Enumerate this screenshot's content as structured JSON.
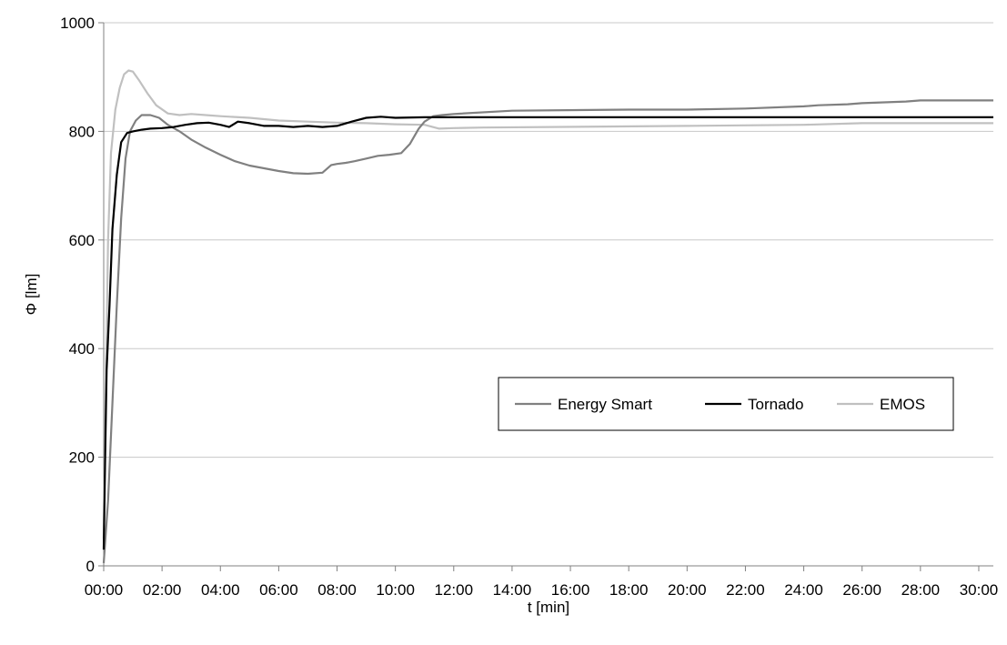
{
  "chart_data": {
    "type": "line",
    "title": "",
    "xlabel": "t [min]",
    "ylabel": "Φ [lm]",
    "x_unit": "minutes",
    "xlim": [
      0,
      30.5
    ],
    "ylim": [
      0,
      1000
    ],
    "x_ticks": [
      0,
      2,
      4,
      6,
      8,
      10,
      12,
      14,
      16,
      18,
      20,
      22,
      24,
      26,
      28,
      30
    ],
    "x_tick_labels": [
      "00:00",
      "02:00",
      "04:00",
      "06:00",
      "08:00",
      "10:00",
      "12:00",
      "14:00",
      "16:00",
      "18:00",
      "20:00",
      "22:00",
      "24:00",
      "26:00",
      "28:00",
      "30:00"
    ],
    "y_ticks": [
      0,
      200,
      400,
      600,
      800,
      1000
    ],
    "y_tick_labels": [
      "0",
      "200",
      "400",
      "600",
      "800",
      "1000"
    ],
    "grid": "horizontal",
    "legend_position": "center-right",
    "series": [
      {
        "name": "Energy Smart",
        "color": "#808080",
        "x": [
          0,
          0.15,
          0.3,
          0.45,
          0.6,
          0.75,
          0.9,
          1.1,
          1.3,
          1.6,
          1.9,
          2.2,
          2.6,
          3.0,
          3.5,
          4.0,
          4.5,
          5.0,
          5.5,
          6.0,
          6.5,
          7.0,
          7.5,
          7.8,
          8.0,
          8.3,
          8.6,
          9.0,
          9.4,
          9.8,
          10.2,
          10.5,
          10.8,
          11.0,
          11.3,
          11.6,
          12.0,
          14.0,
          18.0,
          20.0,
          22.0,
          24.0,
          24.5,
          25.5,
          26.0,
          27.5,
          28.0,
          30.0,
          30.5
        ],
        "y": [
          5,
          120,
          300,
          480,
          640,
          750,
          800,
          820,
          830,
          830,
          825,
          812,
          800,
          785,
          770,
          757,
          745,
          737,
          732,
          727,
          723,
          722,
          724,
          738,
          740,
          742,
          745,
          750,
          755,
          757,
          760,
          777,
          805,
          818,
          828,
          830,
          832,
          838,
          840,
          840,
          842,
          846,
          848,
          850,
          852,
          855,
          857,
          857,
          857
        ]
      },
      {
        "name": "Tornado",
        "color": "#000000",
        "x": [
          0,
          0.05,
          0.1,
          0.2,
          0.3,
          0.45,
          0.6,
          0.8,
          1.0,
          1.3,
          1.6,
          2.0,
          2.4,
          2.8,
          3.2,
          3.6,
          4.0,
          4.3,
          4.6,
          5.0,
          5.5,
          6.0,
          6.5,
          7.0,
          7.5,
          8.0,
          8.5,
          9.0,
          9.5,
          10.0,
          11.0,
          12.0,
          14.0,
          20.0,
          30.5
        ],
        "y": [
          30,
          200,
          360,
          480,
          620,
          720,
          780,
          797,
          800,
          803,
          805,
          806,
          808,
          812,
          815,
          816,
          812,
          808,
          818,
          815,
          810,
          810,
          808,
          810,
          808,
          810,
          818,
          825,
          827,
          825,
          826,
          826,
          826,
          826,
          826
        ]
      },
      {
        "name": "EMOS",
        "color": "#c0c0c0",
        "x": [
          0,
          0.05,
          0.15,
          0.25,
          0.4,
          0.55,
          0.7,
          0.85,
          1.0,
          1.2,
          1.5,
          1.8,
          2.2,
          2.6,
          3.0,
          3.5,
          4.0,
          5.0,
          6.0,
          7.0,
          8.0,
          9.0,
          10.0,
          11.0,
          11.5,
          12.0,
          13.0,
          20.0,
          24.0,
          26.0,
          30.5
        ],
        "y": [
          50,
          250,
          600,
          760,
          840,
          880,
          905,
          912,
          910,
          895,
          870,
          848,
          833,
          830,
          832,
          830,
          828,
          825,
          820,
          818,
          816,
          815,
          813,
          812,
          805,
          806,
          807,
          810,
          812,
          815,
          815
        ]
      }
    ]
  }
}
